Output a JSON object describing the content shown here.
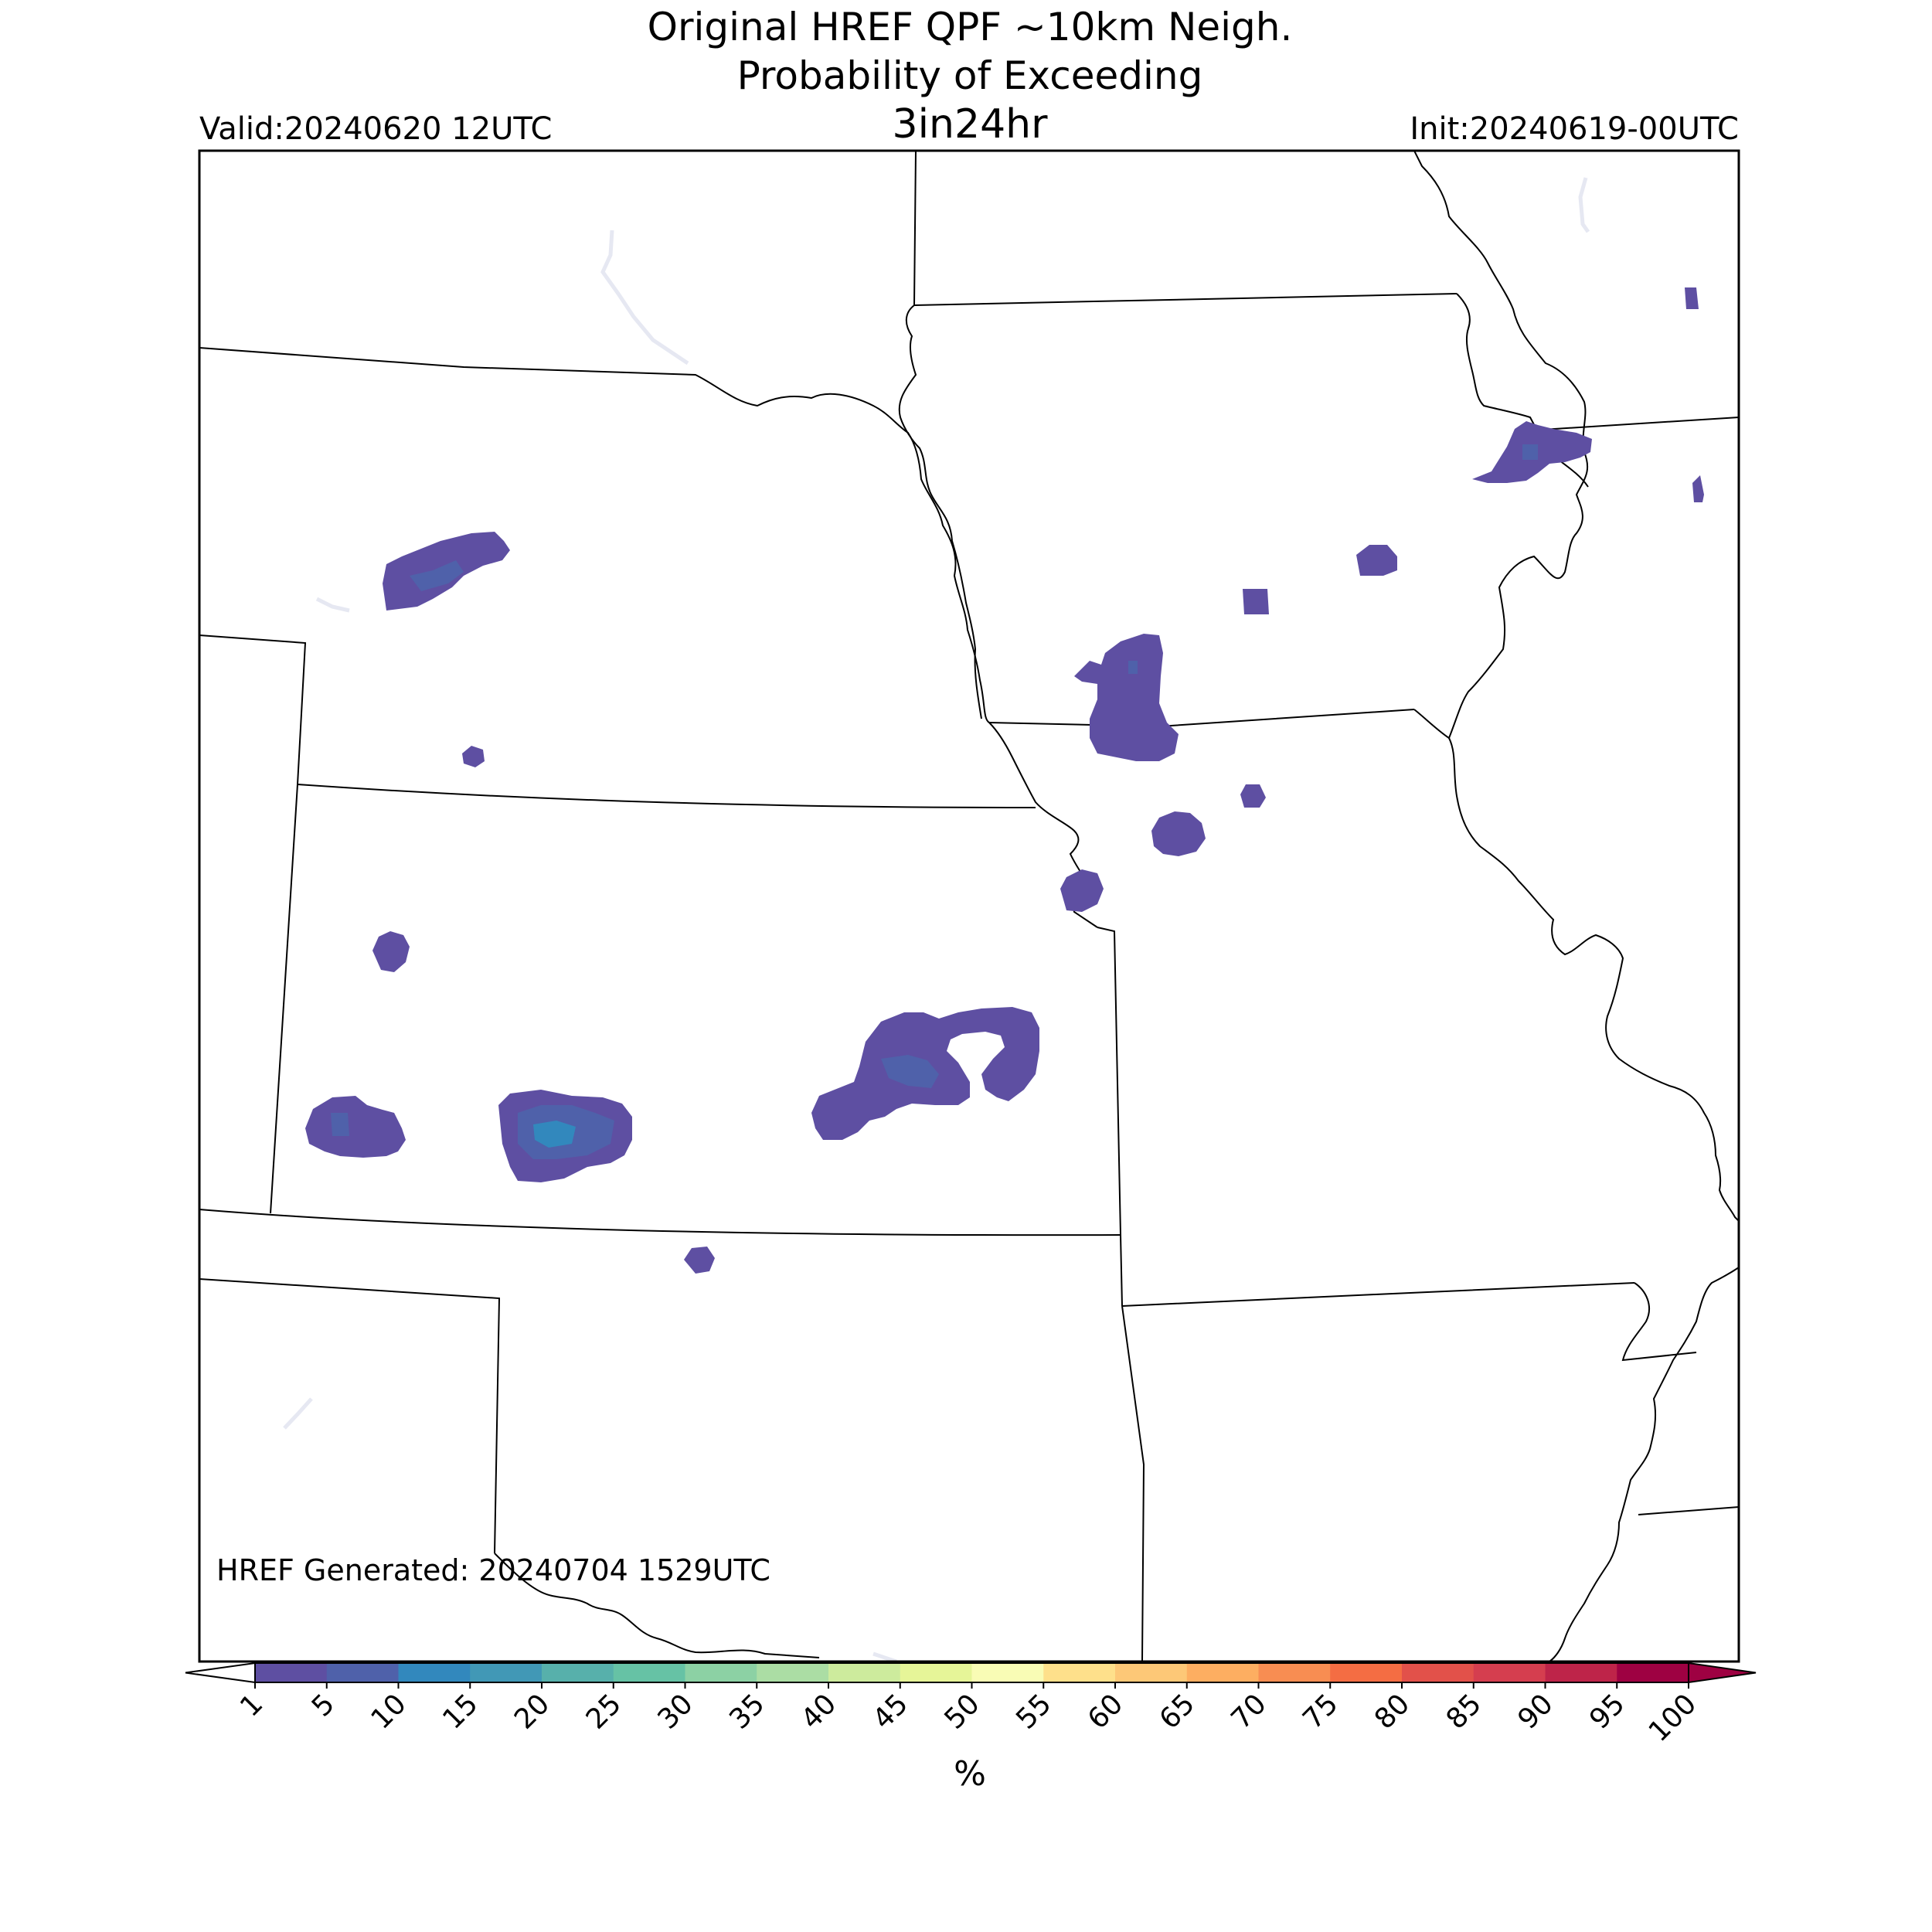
{
  "header": {
    "title_line1": "Original HREF QPF ~10km Neigh.",
    "title_line2": "Probability of Exceeding",
    "threshold": "3in24hr",
    "valid": "Valid:20240620 12UTC",
    "init": "Init:20240619-00UTC"
  },
  "footer": {
    "generated": "HREF Generated: 20240704 1529UTC"
  },
  "colorbar": {
    "unit": "%",
    "ticks": [
      "1",
      "5",
      "10",
      "15",
      "20",
      "25",
      "30",
      "35",
      "40",
      "45",
      "50",
      "55",
      "60",
      "65",
      "70",
      "75",
      "80",
      "85",
      "90",
      "95",
      "100"
    ],
    "colors": [
      "#5e4fa2",
      "#4f61aa",
      "#3288bd",
      "#4198b6",
      "#57b0ab",
      "#66c2a5",
      "#8cd1a4",
      "#abdda4",
      "#cdeb9d",
      "#e6f598",
      "#f9fcb5",
      "#fee08b",
      "#fdc877",
      "#fdae61",
      "#f88d52",
      "#f46d43",
      "#e2514a",
      "#d53e4f",
      "#be2449",
      "#9e0142"
    ],
    "under_color": "#ffffff",
    "over_color": "#9e0142"
  },
  "probability_colors": {
    "low": "#5e4fa2",
    "mid": "#4f61aa",
    "high": "#3288bd"
  }
}
